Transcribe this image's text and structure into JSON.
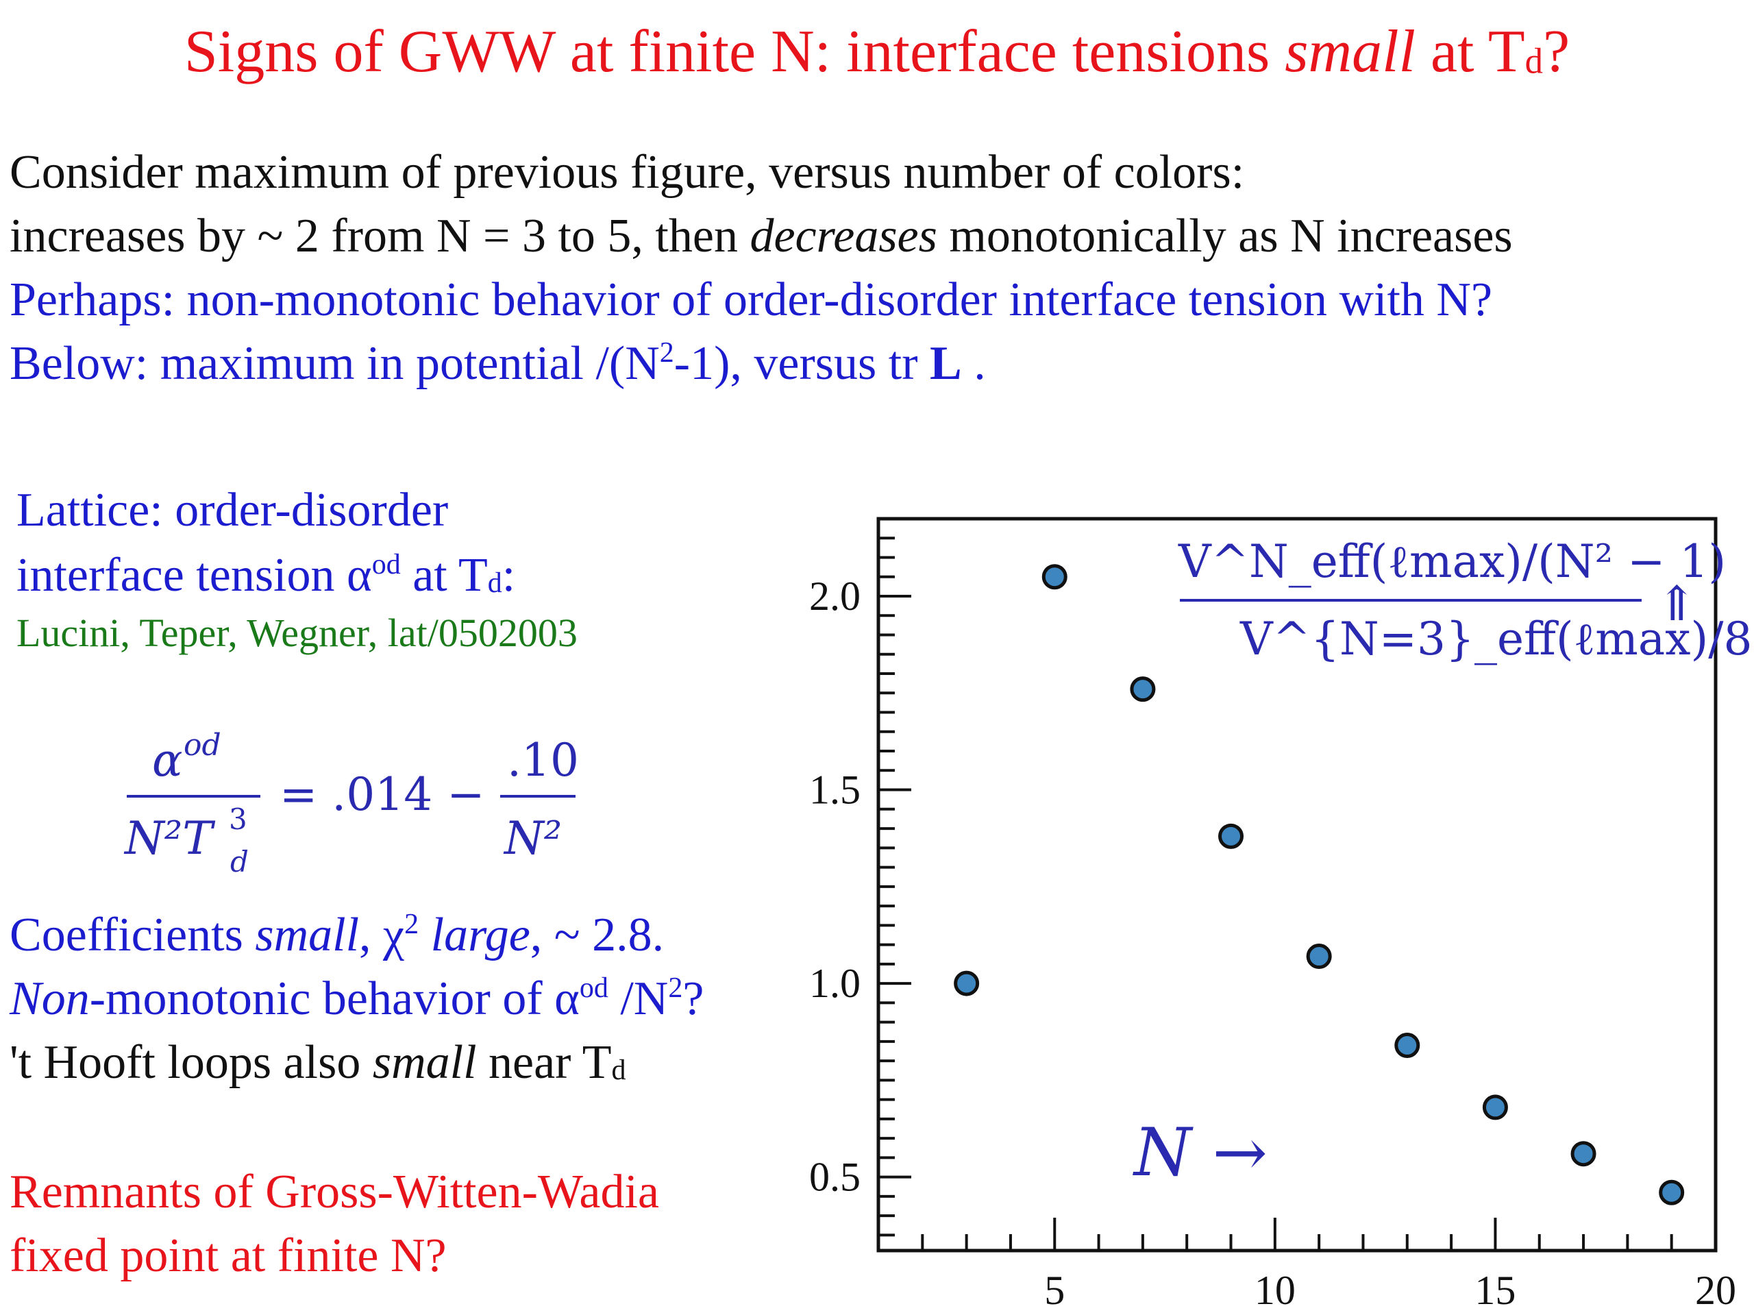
{
  "title": {
    "pre": "Signs of GWW at finite N: interface tensions ",
    "emph": "small",
    "post": " at T",
    "sub": "d",
    "end": "?"
  },
  "intro": {
    "line1": "Consider maximum of previous figure, versus number of colors:",
    "line2_pre": "increases by ~ 2 from N = 3 to 5, then ",
    "line2_emph": "decreases",
    "line2_post": " monotonically as N increases",
    "line3": "Perhaps: non-monotonic behavior of order-disorder interface tension with N?",
    "line4_pre": "Below: maximum in potential /(N",
    "line4_sup": "2",
    "line4_mid": "-1), versus tr ",
    "line4_bold": "L",
    "line4_end": " ."
  },
  "lattice": {
    "line1": "Lattice: order-disorder",
    "line2_pre": "interface tension α",
    "line2_sup": "od",
    "line2_mid": " at T",
    "line2_sub": "d",
    "line2_end": ":",
    "citation": "Lucini, Teper, Wegner, lat/0502003"
  },
  "equation": {
    "num_left": "α",
    "num_left_sup": "od",
    "den_left": "N²T",
    "den_left_sup": "3",
    "den_left_sub": "d",
    "equals": "= .014 −",
    "num_right": ".10",
    "den_right": "N²"
  },
  "coeff": {
    "line1_pre": "Coefficients ",
    "line1_emph": "small",
    "line1_mid": ", χ",
    "line1_sup": "2",
    "line1_emph2": " large",
    "line1_end": ", ~ 2.8.",
    "line2_emph": "Non",
    "line2_pre": "-monotonic behavior of α",
    "line2_sup": "od",
    "line2_mid": " /N",
    "line2_sup2": "2",
    "line2_end": "?",
    "line3_pre": "'t Hooft loops also ",
    "line3_emph": "small",
    "line3_mid": " near T",
    "line3_sub": "d"
  },
  "remnants": {
    "line1": "Remnants of Gross-Witten-Wadia",
    "line2": "fixed point at finite N?"
  },
  "chart_data": {
    "type": "scatter",
    "x": [
      3,
      5,
      7,
      9,
      11,
      13,
      15,
      17,
      19
    ],
    "y": [
      1.0,
      2.05,
      1.76,
      1.38,
      1.07,
      0.84,
      0.68,
      0.56,
      0.46
    ],
    "xlim": [
      1,
      20
    ],
    "ylim": [
      0.31,
      2.2
    ],
    "xticks": [
      5,
      10,
      15,
      20
    ],
    "yticks": [
      0.5,
      1.0,
      1.5,
      2.0
    ],
    "xtick_labels": [
      "5",
      "10",
      "15",
      "20"
    ],
    "ytick_labels": [
      "0.5",
      "1.0",
      "1.5",
      "2.0"
    ],
    "annotation_arrow": "N →",
    "label_numerator": "V^N_eff(ℓmax)/(N² − 1)",
    "label_denominator": "V^{N=3}_eff(ℓmax)/8",
    "label_arrow": "⇑",
    "marker_color": "#3e86c0",
    "grid": false
  }
}
